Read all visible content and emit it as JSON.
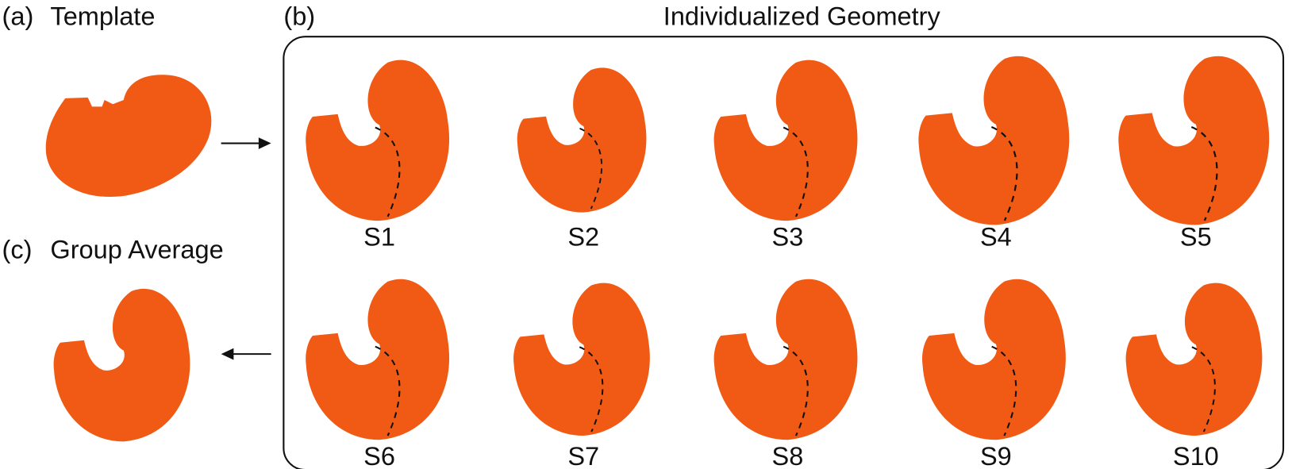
{
  "panel_a": {
    "label": "(a)",
    "title": "Template"
  },
  "panel_b": {
    "label": "(b)",
    "title": "Individualized Geometry"
  },
  "panel_c": {
    "label": "(c)",
    "title": "Group Average"
  },
  "subjects": [
    "S1",
    "S2",
    "S3",
    "S4",
    "S5",
    "S6",
    "S7",
    "S8",
    "S9",
    "S10"
  ]
}
